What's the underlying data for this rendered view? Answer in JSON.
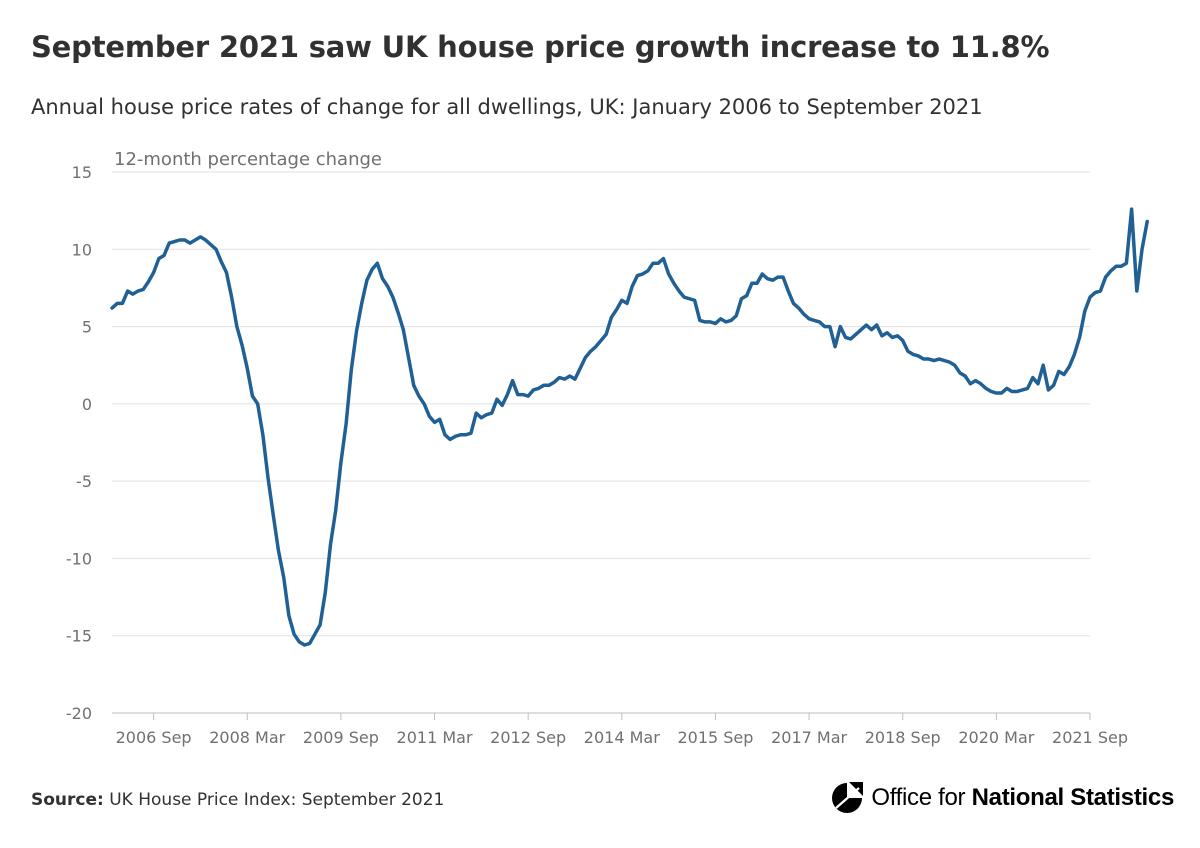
{
  "title": "September 2021 saw UK house price growth increase to 11.8%",
  "subtitle": "Annual house price rates of change for all dwellings, UK: January 2006 to September 2021",
  "footer": {
    "source_label": "Source:",
    "source_text": "UK House Price Index: September 2021",
    "logo_text_regular": "Office for",
    "logo_text_bold": "National Statistics"
  },
  "colors": {
    "line": "#206095",
    "grid": "#e0e0e0",
    "axis": "#bebebe",
    "text": "#707071",
    "title": "#323132"
  },
  "chart_data": {
    "type": "line",
    "title": "September 2021 saw UK house price growth increase to 11.8%",
    "subtitle": "Annual house price rates of change for all dwellings, UK: January 2006 to September 2021",
    "ylabel": "12-month percentage change",
    "xlabel": "",
    "ylim": [
      -20,
      15
    ],
    "yticks": [
      15,
      10,
      5,
      0,
      -5,
      -10,
      -15,
      -20
    ],
    "xticks": [
      "2006 Sep",
      "2008 Mar",
      "2009 Sep",
      "2011 Mar",
      "2012 Sep",
      "2014 Mar",
      "2015 Sep",
      "2017 Mar",
      "2018 Sep",
      "2020 Mar",
      "2021 Sep"
    ],
    "x_start": "2006 Jan",
    "x_end": "2021 Sep",
    "grid": true,
    "legend": "none",
    "series": [
      {
        "values": [
          6.2,
          6.5,
          6.5,
          7.3,
          7.1,
          7.3,
          7.4,
          7.9,
          8.5,
          9.4,
          9.6,
          10.4,
          10.5,
          10.6,
          10.6,
          10.4,
          10.6,
          10.8,
          10.6,
          10.3,
          10.0,
          9.2,
          8.5,
          6.9,
          5.0,
          3.8,
          2.3,
          0.5,
          0.0,
          -2.0,
          -4.8,
          -7.2,
          -9.5,
          -11.2,
          -13.7,
          -14.9,
          -15.4,
          -15.6,
          -15.5,
          -14.9,
          -14.3,
          -12.2,
          -9.1,
          -6.9,
          -3.8,
          -1.3,
          2.2,
          4.7,
          6.5,
          8.0,
          8.7,
          9.1,
          8.1,
          7.6,
          6.9,
          5.9,
          4.8,
          3.0,
          1.2,
          0.5,
          0.0,
          -0.8,
          -1.2,
          -1.0,
          -2.0,
          -2.3,
          -2.1,
          -2.0,
          -2.0,
          -1.9,
          -0.6,
          -0.9,
          -0.7,
          -0.6,
          0.3,
          -0.1,
          0.6,
          1.5,
          0.6,
          0.6,
          0.5,
          0.9,
          1.0,
          1.2,
          1.2,
          1.4,
          1.7,
          1.6,
          1.8,
          1.6,
          2.3,
          3.0,
          3.4,
          3.7,
          4.1,
          4.5,
          5.6,
          6.1,
          6.7,
          6.5,
          7.6,
          8.3,
          8.4,
          8.6,
          9.1,
          9.1,
          9.4,
          8.4,
          7.8,
          7.3,
          6.9,
          6.8,
          6.7,
          5.4,
          5.3,
          5.3,
          5.2,
          5.5,
          5.3,
          5.4,
          5.7,
          6.8,
          7.0,
          7.8,
          7.8,
          8.4,
          8.1,
          8.0,
          8.2,
          8.2,
          7.3,
          6.5,
          6.2,
          5.8,
          5.5,
          5.4,
          5.3,
          5.0,
          5.0,
          3.7,
          5.0,
          4.3,
          4.2,
          4.5,
          4.8,
          5.1,
          4.8,
          5.1,
          4.4,
          4.6,
          4.3,
          4.4,
          4.1,
          3.4,
          3.2,
          3.1,
          2.9,
          2.9,
          2.8,
          2.9,
          2.8,
          2.7,
          2.5,
          2.0,
          1.8,
          1.3,
          1.5,
          1.3,
          1.0,
          0.8,
          0.7,
          0.7,
          1.0,
          0.8,
          0.8,
          0.9,
          1.0,
          1.7,
          1.3,
          2.5,
          0.9,
          1.2,
          2.1,
          1.9,
          2.4,
          3.2,
          4.3,
          6.0,
          6.9,
          7.2,
          7.3,
          8.2,
          8.6,
          8.9,
          8.9,
          9.1,
          12.6,
          7.3,
          10.0,
          11.8
        ]
      }
    ]
  }
}
